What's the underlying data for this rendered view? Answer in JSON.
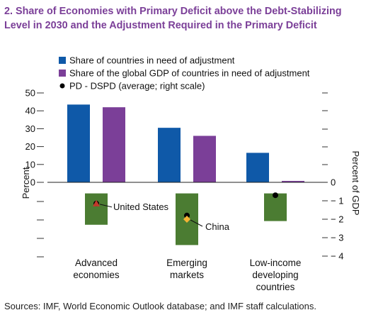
{
  "chart_data": {
    "type": "bar",
    "title_lines": [
      "2. Share of Economies with Primary Deficit above the Debt-Stabilizing",
      "Level in 2030 and the Adjustment Required in the Primary Deficit"
    ],
    "categories": [
      [
        "Advanced",
        "economies"
      ],
      [
        "Emerging",
        "markets"
      ],
      [
        "Low-income",
        "developing",
        "countries"
      ]
    ],
    "series": [
      {
        "name": "Share of countries in need of adjustment",
        "color": "#0f59a8",
        "values": [
          43.5,
          30.5,
          16.5
        ]
      },
      {
        "name": "Share of the global GDP of countries in need of adjustment",
        "color": "#7b3f98",
        "values": [
          42.0,
          26.0,
          0.8
        ]
      }
    ],
    "range_bars": {
      "color": "#4b7c32",
      "values": [
        [
          -0.6,
          -2.3
        ],
        [
          -0.6,
          -3.4
        ],
        [
          -0.6,
          -2.1
        ]
      ]
    },
    "markers": {
      "name": "PD - DSPD (average; right scale)",
      "color": "#000000",
      "values": [
        -1.15,
        -1.8,
        -0.7
      ]
    },
    "highlights": [
      {
        "label": "United States",
        "category_index": 0,
        "value": -1.15,
        "color": "#c0392b"
      },
      {
        "label": "China",
        "category_index": 1,
        "value": -2.0,
        "color": "#f5b335"
      }
    ],
    "ylabel": "Percent",
    "ylabel_right": "Percent of GDP",
    "y_ticks": [
      "50",
      "40",
      "30",
      "20",
      "10",
      "0"
    ],
    "y_ylim": [
      0,
      50
    ],
    "y2_ticks": [
      "0",
      "− 1",
      "− 2",
      "− 3",
      "− 4"
    ],
    "y2_ylim": [
      -4,
      0
    ],
    "legend_position": "top-left",
    "grid": false
  },
  "source": "Sources: IMF, World Economic Outlook database; and IMF staff calculations."
}
